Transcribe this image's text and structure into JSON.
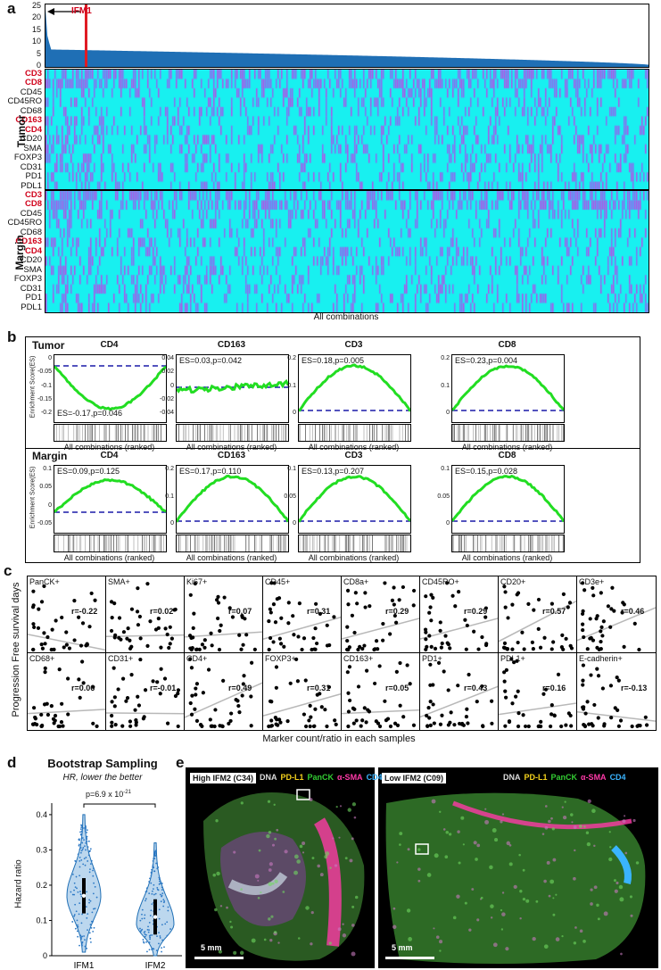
{
  "panel_a": {
    "letter": "a",
    "bar_yticks": [
      "25",
      "20",
      "15",
      "10",
      "5",
      "0"
    ],
    "ifm_label": "IFM1",
    "tumor_label": "Tumor",
    "margin_label": "Margin",
    "markers": [
      "CD3",
      "CD8",
      "CD45",
      "CD45RO",
      "CD68",
      "CD163",
      "CD4",
      "CD20",
      "SMA",
      "FOXP3",
      "CD31",
      "PD1",
      "PDL1"
    ],
    "highlight_markers": [
      "CD3",
      "CD8",
      "CD163",
      "CD4"
    ],
    "xlabel": "All combinations",
    "colors": {
      "bar": "#1f6fb5",
      "low": "#18f0f0",
      "high": "#b44ee8",
      "marker_line": "#e01b24"
    }
  },
  "panel_b": {
    "letter": "b",
    "ylabel": "Enrichment Score(ES)",
    "xlabel": "All combinations (ranked)",
    "groups": [
      {
        "name": "Tumor",
        "plots": [
          {
            "marker": "CD4",
            "es": "ES=-0.17,p=0.046",
            "yticks": [
              "0",
              "-0.05",
              "-0.1",
              "-0.15",
              "-0.2"
            ],
            "shape": "neg"
          },
          {
            "marker": "CD163",
            "es": "ES=0.03,p=0.042",
            "yticks": [
              "0.04",
              "0.02",
              "0",
              "-0.02",
              "-0.04"
            ],
            "shape": "flat"
          },
          {
            "marker": "CD3",
            "es": "ES=0.18,p=0.005",
            "yticks": [
              "0.2",
              "0.1",
              "0"
            ],
            "shape": "pos"
          },
          {
            "marker": "CD8",
            "es": "ES=0.23,p=0.004",
            "yticks": [
              "0.2",
              "0.1",
              "0"
            ],
            "shape": "pos"
          }
        ]
      },
      {
        "name": "Margin",
        "plots": [
          {
            "marker": "CD4",
            "es": "ES=0.09,p=0.125",
            "yticks": [
              "0.1",
              "0.05",
              "0",
              "-0.05"
            ],
            "shape": "pos2"
          },
          {
            "marker": "CD163",
            "es": "ES=0.17,p=0.110",
            "yticks": [
              "0.2",
              "0.1",
              "0"
            ],
            "shape": "pos"
          },
          {
            "marker": "CD3",
            "es": "ES=0.13,p=0.207",
            "yticks": [
              "0.1",
              "0.05",
              "0"
            ],
            "shape": "pos"
          },
          {
            "marker": "CD8",
            "es": "ES=0.15,p=0.028",
            "yticks": [
              "0.1",
              "0.05",
              "0"
            ],
            "shape": "pos"
          }
        ]
      }
    ],
    "colors": {
      "curve": "#22dd22",
      "baseline": "#1a1aa8"
    }
  },
  "panel_c": {
    "letter": "c",
    "ylabel": "Progression Free survival days",
    "xlabel": "Marker count/ratio in each samples",
    "plots": [
      {
        "marker": "PanCK+",
        "r": "r=-0.22",
        "slope": -0.22
      },
      {
        "marker": "SMA+",
        "r": "r=0.02",
        "slope": 0.02
      },
      {
        "marker": "Ki67+",
        "r": "r=0.07",
        "slope": 0.07
      },
      {
        "marker": "CD45+",
        "r": "r=0.31",
        "slope": 0.31
      },
      {
        "marker": "CD8a+",
        "r": "r=0.29",
        "slope": 0.29
      },
      {
        "marker": "CD45RO+",
        "r": "r=0.29",
        "slope": 0.29
      },
      {
        "marker": "CD20+",
        "r": "r=0.57",
        "slope": 0.57
      },
      {
        "marker": "CD3e+",
        "r": "r=0.46",
        "slope": 0.46
      },
      {
        "marker": "CD68+",
        "r": "r=0.06",
        "slope": 0.06
      },
      {
        "marker": "CD31+",
        "r": "r=-0.01",
        "slope": -0.01
      },
      {
        "marker": "CD4+",
        "r": "r=0.49",
        "slope": 0.49
      },
      {
        "marker": "FOXP3+",
        "r": "r=0.31",
        "slope": 0.31
      },
      {
        "marker": "CD163+",
        "r": "r=0.05",
        "slope": 0.05
      },
      {
        "marker": "PD1+",
        "r": "r=0.43",
        "slope": 0.43
      },
      {
        "marker": "PDL1+",
        "r": "r=0.16",
        "slope": 0.16
      },
      {
        "marker": "E-cadherin+",
        "r": "r=-0.13",
        "slope": -0.13
      }
    ]
  },
  "panel_d": {
    "letter": "d",
    "title": "Bootstrap Sampling",
    "subtitle": "HR, lower the better",
    "pvalue": "p=6.9 x 10",
    "pvalue_exp": "-21",
    "ylabel": "Hazard ratio",
    "yticks": [
      "0.4",
      "0.3",
      "0.2",
      "0.1",
      "0"
    ],
    "groups": [
      "IFM1",
      "IFM2"
    ],
    "colors": {
      "violin": "#bcd7ee",
      "edge": "#1f6fb5",
      "dots": "#2b78c5"
    }
  },
  "panel_e": {
    "letter": "e",
    "left": {
      "title": "High IFM2 (C34)",
      "scale": "5 mm"
    },
    "right": {
      "title": "Low IFM2 (C09)",
      "scale": "5 mm"
    },
    "legend": [
      {
        "word": "DNA",
        "color": "#dddddd"
      },
      {
        "word": "PD-L1",
        "color": "#f5d21d"
      },
      {
        "word": "PanCK",
        "color": "#33cc33"
      },
      {
        "word": "α-SMA",
        "color": "#ff3aa8"
      },
      {
        "word": "CD4",
        "color": "#3ab4ff"
      }
    ]
  }
}
